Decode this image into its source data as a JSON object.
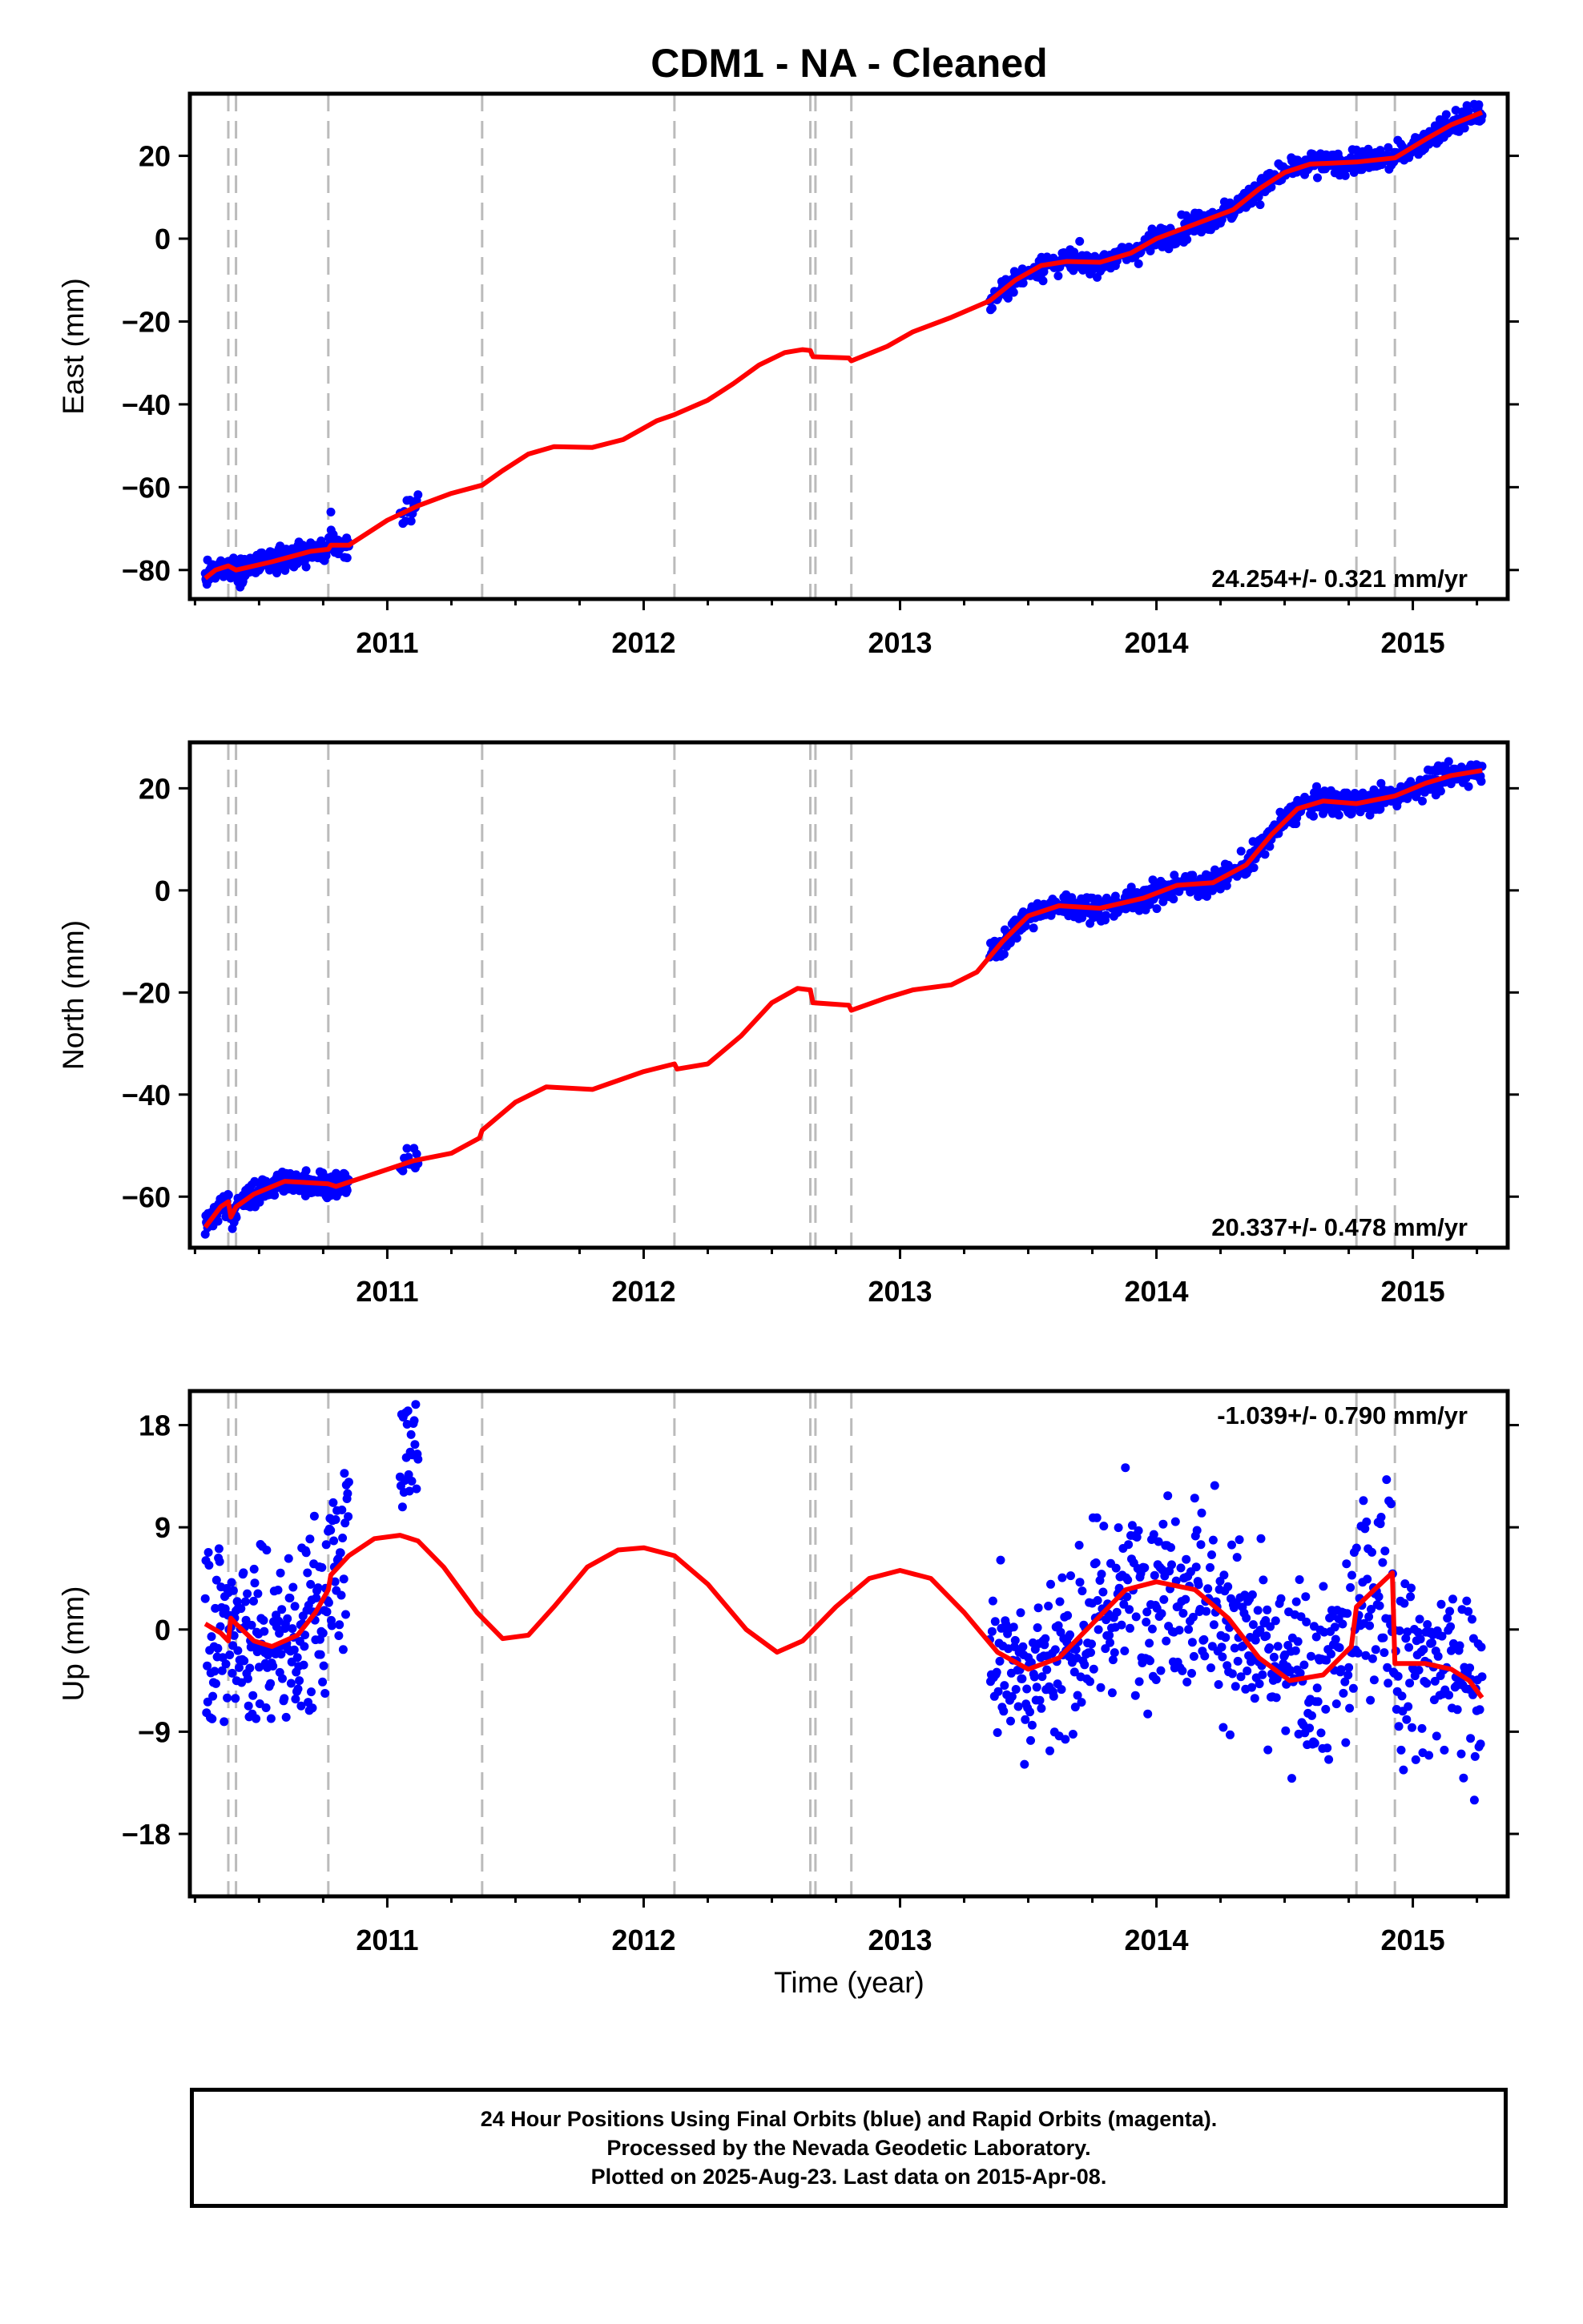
{
  "chart_data": {
    "type": "scatter",
    "title": "CDM1  - NA - Cleaned",
    "xlabel": "Time (year)",
    "x_ticks": [
      2011,
      2012,
      2013,
      2014,
      2015
    ],
    "xlim": [
      2010.23,
      2015.37
    ],
    "grid": false,
    "colors": {
      "observed": "#0000ff",
      "model": "#ff0000",
      "events": "#bbbbbb",
      "frame": "#000000"
    },
    "event_lines": [
      2010.38,
      2010.41,
      2010.77,
      2011.37,
      2012.12,
      2012.65,
      2012.67,
      2012.81,
      2014.78,
      2014.93
    ],
    "panels": [
      {
        "id": "east",
        "ylabel": "East (mm)",
        "ylim": [
          -87,
          35
        ],
        "y_ticks": [
          -80,
          -60,
          -40,
          -20,
          0,
          20
        ],
        "rate_label": "24.254+/- 0.321 mm/yr",
        "rate_position": "bottom-right",
        "data_segments": [
          [
            2010.29,
            2010.85
          ],
          [
            2011.05,
            2011.12
          ],
          [
            2013.35,
            2015.27
          ]
        ],
        "anomaly_points": [
          {
            "x": 2010.78,
            "y": -66
          }
        ],
        "model": [
          {
            "x": 2010.29,
            "y": -82
          },
          {
            "x": 2010.33,
            "y": -80
          },
          {
            "x": 2010.38,
            "y": -79
          },
          {
            "x": 2010.41,
            "y": -80
          },
          {
            "x": 2010.55,
            "y": -78
          },
          {
            "x": 2010.7,
            "y": -75.5
          },
          {
            "x": 2010.77,
            "y": -75
          },
          {
            "x": 2010.78,
            "y": -74
          },
          {
            "x": 2010.85,
            "y": -74
          },
          {
            "x": 2011.0,
            "y": -68
          },
          {
            "x": 2011.12,
            "y": -64.5
          },
          {
            "x": 2011.25,
            "y": -61.5
          },
          {
            "x": 2011.37,
            "y": -59.5
          },
          {
            "x": 2011.45,
            "y": -56
          },
          {
            "x": 2011.55,
            "y": -52
          },
          {
            "x": 2011.65,
            "y": -50.2
          },
          {
            "x": 2011.8,
            "y": -50.4
          },
          {
            "x": 2011.92,
            "y": -48.5
          },
          {
            "x": 2012.05,
            "y": -44
          },
          {
            "x": 2012.12,
            "y": -42.5
          },
          {
            "x": 2012.25,
            "y": -39
          },
          {
            "x": 2012.35,
            "y": -35
          },
          {
            "x": 2012.45,
            "y": -30.5
          },
          {
            "x": 2012.55,
            "y": -27.5
          },
          {
            "x": 2012.62,
            "y": -26.8
          },
          {
            "x": 2012.65,
            "y": -27
          },
          {
            "x": 2012.66,
            "y": -28.5
          },
          {
            "x": 2012.8,
            "y": -28.8
          },
          {
            "x": 2012.81,
            "y": -29.5
          },
          {
            "x": 2012.95,
            "y": -26
          },
          {
            "x": 2013.05,
            "y": -22.5
          },
          {
            "x": 2013.2,
            "y": -19
          },
          {
            "x": 2013.35,
            "y": -15
          },
          {
            "x": 2013.45,
            "y": -10
          },
          {
            "x": 2013.55,
            "y": -6.5
          },
          {
            "x": 2013.65,
            "y": -5.5
          },
          {
            "x": 2013.78,
            "y": -5.7
          },
          {
            "x": 2013.9,
            "y": -3.5
          },
          {
            "x": 2014.0,
            "y": 0
          },
          {
            "x": 2014.15,
            "y": 3.5
          },
          {
            "x": 2014.3,
            "y": 7
          },
          {
            "x": 2014.4,
            "y": 12
          },
          {
            "x": 2014.5,
            "y": 16
          },
          {
            "x": 2014.6,
            "y": 18
          },
          {
            "x": 2014.78,
            "y": 18.5
          },
          {
            "x": 2014.93,
            "y": 19.5
          },
          {
            "x": 2015.05,
            "y": 24
          },
          {
            "x": 2015.15,
            "y": 27.5
          },
          {
            "x": 2015.27,
            "y": 30.5
          }
        ]
      },
      {
        "id": "north",
        "ylabel": "North (mm)",
        "ylim": [
          -70,
          29
        ],
        "y_ticks": [
          -60,
          -40,
          -20,
          0,
          20
        ],
        "rate_label": "20.337+/- 0.478 mm/yr",
        "rate_position": "bottom-right",
        "data_segments": [
          [
            2010.29,
            2010.85
          ],
          [
            2011.05,
            2011.12
          ],
          [
            2013.35,
            2015.27
          ]
        ],
        "model": [
          {
            "x": 2010.29,
            "y": -66
          },
          {
            "x": 2010.35,
            "y": -62
          },
          {
            "x": 2010.38,
            "y": -61
          },
          {
            "x": 2010.39,
            "y": -64
          },
          {
            "x": 2010.41,
            "y": -62
          },
          {
            "x": 2010.48,
            "y": -59.5
          },
          {
            "x": 2010.6,
            "y": -57
          },
          {
            "x": 2010.77,
            "y": -57.5
          },
          {
            "x": 2010.8,
            "y": -58
          },
          {
            "x": 2010.95,
            "y": -55.5
          },
          {
            "x": 2011.1,
            "y": -53
          },
          {
            "x": 2011.25,
            "y": -51.5
          },
          {
            "x": 2011.36,
            "y": -48.5
          },
          {
            "x": 2011.37,
            "y": -47
          },
          {
            "x": 2011.5,
            "y": -41.5
          },
          {
            "x": 2011.62,
            "y": -38.5
          },
          {
            "x": 2011.8,
            "y": -39
          },
          {
            "x": 2012.0,
            "y": -35.5
          },
          {
            "x": 2012.12,
            "y": -34
          },
          {
            "x": 2012.13,
            "y": -35
          },
          {
            "x": 2012.25,
            "y": -34
          },
          {
            "x": 2012.38,
            "y": -28.5
          },
          {
            "x": 2012.5,
            "y": -22
          },
          {
            "x": 2012.6,
            "y": -19.2
          },
          {
            "x": 2012.65,
            "y": -19.5
          },
          {
            "x": 2012.66,
            "y": -22
          },
          {
            "x": 2012.8,
            "y": -22.5
          },
          {
            "x": 2012.81,
            "y": -23.5
          },
          {
            "x": 2012.95,
            "y": -21
          },
          {
            "x": 2013.05,
            "y": -19.5
          },
          {
            "x": 2013.2,
            "y": -18.5
          },
          {
            "x": 2013.3,
            "y": -16
          },
          {
            "x": 2013.4,
            "y": -10
          },
          {
            "x": 2013.5,
            "y": -5
          },
          {
            "x": 2013.62,
            "y": -3
          },
          {
            "x": 2013.78,
            "y": -3.5
          },
          {
            "x": 2013.95,
            "y": -1.5
          },
          {
            "x": 2014.08,
            "y": 1
          },
          {
            "x": 2014.22,
            "y": 1.5
          },
          {
            "x": 2014.35,
            "y": 5
          },
          {
            "x": 2014.45,
            "y": 11
          },
          {
            "x": 2014.55,
            "y": 16
          },
          {
            "x": 2014.65,
            "y": 17.5
          },
          {
            "x": 2014.78,
            "y": 17
          },
          {
            "x": 2014.93,
            "y": 18.5
          },
          {
            "x": 2015.05,
            "y": 21
          },
          {
            "x": 2015.15,
            "y": 22.5
          },
          {
            "x": 2015.27,
            "y": 23.5
          }
        ]
      },
      {
        "id": "up",
        "ylabel": "Up (mm)",
        "ylim": [
          -23.5,
          21
        ],
        "y_ticks": [
          -18,
          -9,
          0,
          9,
          18
        ],
        "rate_label": "-1.039+/- 0.790 mm/yr",
        "rate_position": "top-right",
        "data_segments": [
          [
            2010.29,
            2010.85
          ],
          [
            2011.05,
            2011.12
          ],
          [
            2013.35,
            2015.27
          ]
        ],
        "model": [
          {
            "x": 2010.29,
            "y": 0.5
          },
          {
            "x": 2010.35,
            "y": -0.3
          },
          {
            "x": 2010.38,
            "y": -1
          },
          {
            "x": 2010.39,
            "y": 1
          },
          {
            "x": 2010.41,
            "y": 0.5
          },
          {
            "x": 2010.48,
            "y": -1
          },
          {
            "x": 2010.55,
            "y": -1.5
          },
          {
            "x": 2010.65,
            "y": -0.5
          },
          {
            "x": 2010.72,
            "y": 1.5
          },
          {
            "x": 2010.77,
            "y": 3.5
          },
          {
            "x": 2010.78,
            "y": 4.8
          },
          {
            "x": 2010.85,
            "y": 6.5
          },
          {
            "x": 2010.95,
            "y": 8
          },
          {
            "x": 2011.05,
            "y": 8.3
          },
          {
            "x": 2011.12,
            "y": 7.8
          },
          {
            "x": 2011.22,
            "y": 5.5
          },
          {
            "x": 2011.35,
            "y": 1.5
          },
          {
            "x": 2011.45,
            "y": -0.8
          },
          {
            "x": 2011.55,
            "y": -0.5
          },
          {
            "x": 2011.65,
            "y": 2
          },
          {
            "x": 2011.78,
            "y": 5.5
          },
          {
            "x": 2011.9,
            "y": 7
          },
          {
            "x": 2012.0,
            "y": 7.2
          },
          {
            "x": 2012.12,
            "y": 6.5
          },
          {
            "x": 2012.25,
            "y": 4
          },
          {
            "x": 2012.4,
            "y": 0
          },
          {
            "x": 2012.52,
            "y": -2
          },
          {
            "x": 2012.62,
            "y": -1
          },
          {
            "x": 2012.75,
            "y": 2
          },
          {
            "x": 2012.88,
            "y": 4.5
          },
          {
            "x": 2013.0,
            "y": 5.2
          },
          {
            "x": 2013.12,
            "y": 4.5
          },
          {
            "x": 2013.25,
            "y": 1.5
          },
          {
            "x": 2013.38,
            "y": -2
          },
          {
            "x": 2013.5,
            "y": -3.5
          },
          {
            "x": 2013.62,
            "y": -2.5
          },
          {
            "x": 2013.75,
            "y": 0.5
          },
          {
            "x": 2013.88,
            "y": 3.5
          },
          {
            "x": 2014.0,
            "y": 4.2
          },
          {
            "x": 2014.15,
            "y": 3.5
          },
          {
            "x": 2014.28,
            "y": 1
          },
          {
            "x": 2014.4,
            "y": -2.5
          },
          {
            "x": 2014.52,
            "y": -4.5
          },
          {
            "x": 2014.65,
            "y": -4
          },
          {
            "x": 2014.76,
            "y": -1.5
          },
          {
            "x": 2014.78,
            "y": 2
          },
          {
            "x": 2014.85,
            "y": 3.5
          },
          {
            "x": 2014.92,
            "y": 5
          },
          {
            "x": 2014.93,
            "y": -3
          },
          {
            "x": 2015.05,
            "y": -3
          },
          {
            "x": 2015.15,
            "y": -3.5
          },
          {
            "x": 2015.22,
            "y": -4.5
          },
          {
            "x": 2015.27,
            "y": -6
          }
        ]
      }
    ],
    "footer": [
      "24 Hour Positions Using Final Orbits (blue) and Rapid Orbits (magenta).",
      "Processed by the Nevada Geodetic Laboratory.",
      "Plotted on 2025-Aug-23. Last data on 2015-Apr-08."
    ]
  }
}
